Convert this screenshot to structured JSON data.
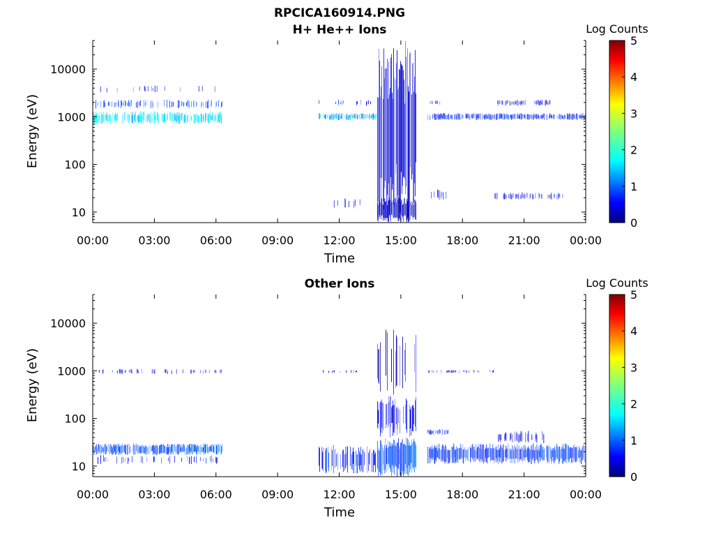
{
  "figure": {
    "title": "RPCICA160914.PNG"
  },
  "colors": {
    "low": "#00007f",
    "mid_low": "#0000ff",
    "mid": "#00ffff",
    "mid_high": "#ffff00",
    "high": "#ff0000",
    "max": "#7f0000"
  },
  "chart_data": [
    {
      "type": "heatmap",
      "title": "H+ He++ Ions",
      "xlabel": "Time",
      "ylabel": "Energy (eV)",
      "xticks": [
        "00:00",
        "03:00",
        "06:00",
        "09:00",
        "12:00",
        "15:00",
        "18:00",
        "21:00",
        "00:00"
      ],
      "xlim_hours": [
        0,
        24
      ],
      "yscale": "log",
      "ylim": [
        6,
        40000
      ],
      "yticks": [
        10,
        100,
        1000,
        10000
      ],
      "ytick_labels": [
        "10",
        "100",
        "1000",
        "10000"
      ],
      "colorbar": {
        "label": "Log Counts",
        "min": 0,
        "max": 5,
        "ticks": [
          "0",
          "1",
          "2",
          "3",
          "4",
          "5"
        ]
      },
      "bands": [
        {
          "t0": 0.0,
          "t1": 6.3,
          "e0": 700,
          "e1": 1300,
          "level": 1.6,
          "density": 0.75
        },
        {
          "t0": 0.0,
          "t1": 6.3,
          "e0": 1500,
          "e1": 2300,
          "level": 0.9,
          "density": 0.35
        },
        {
          "t0": 0.3,
          "t1": 6.3,
          "e0": 3200,
          "e1": 4500,
          "level": 0.5,
          "density": 0.08
        },
        {
          "t0": 11.0,
          "t1": 13.8,
          "e0": 850,
          "e1": 1200,
          "level": 1.3,
          "density": 0.7
        },
        {
          "t0": 11.0,
          "t1": 13.8,
          "e0": 1700,
          "e1": 2300,
          "level": 0.6,
          "density": 0.2
        },
        {
          "t0": 13.85,
          "t1": 15.75,
          "e0": 6,
          "e1": 40000,
          "level": 0.4,
          "density": 0.9
        },
        {
          "t0": 13.85,
          "t1": 15.75,
          "e0": 6,
          "e1": 20,
          "level": 0.25,
          "density": 1.0
        },
        {
          "t0": 16.3,
          "t1": 24.0,
          "e0": 850,
          "e1": 1200,
          "level": 0.7,
          "density": 0.8
        },
        {
          "t0": 16.3,
          "t1": 17.0,
          "e0": 1700,
          "e1": 2300,
          "level": 0.5,
          "density": 0.3
        },
        {
          "t0": 19.7,
          "t1": 22.3,
          "e0": 1700,
          "e1": 2300,
          "level": 0.4,
          "density": 0.6
        },
        {
          "t0": 16.3,
          "t1": 17.2,
          "e0": 18,
          "e1": 30,
          "level": 0.6,
          "density": 0.5
        },
        {
          "t0": 19.5,
          "t1": 23.0,
          "e0": 18,
          "e1": 26,
          "level": 0.5,
          "density": 0.35
        },
        {
          "t0": 11.5,
          "t1": 13.0,
          "e0": 12,
          "e1": 20,
          "level": 0.5,
          "density": 0.15
        }
      ]
    },
    {
      "type": "heatmap",
      "title": "Other Ions",
      "xlabel": "Time",
      "ylabel": "Energy (eV)",
      "xticks": [
        "00:00",
        "03:00",
        "06:00",
        "09:00",
        "12:00",
        "15:00",
        "18:00",
        "21:00",
        "00:00"
      ],
      "xlim_hours": [
        0,
        24
      ],
      "yscale": "log",
      "ylim": [
        6,
        40000
      ],
      "yticks": [
        10,
        100,
        1000,
        10000
      ],
      "ytick_labels": [
        "10",
        "100",
        "1000",
        "10000"
      ],
      "colorbar": {
        "label": "Log Counts",
        "min": 0,
        "max": 5,
        "ticks": [
          "0",
          "1",
          "2",
          "3",
          "4",
          "5"
        ]
      },
      "bands": [
        {
          "t0": 0.0,
          "t1": 6.3,
          "e0": 17,
          "e1": 30,
          "level": 0.9,
          "density": 0.85
        },
        {
          "t0": 0.0,
          "t1": 6.3,
          "e0": 11,
          "e1": 17,
          "level": 0.6,
          "density": 0.25
        },
        {
          "t0": 0.3,
          "t1": 6.3,
          "e0": 850,
          "e1": 1100,
          "level": 0.5,
          "density": 0.25
        },
        {
          "t0": 11.0,
          "t1": 13.8,
          "e0": 7,
          "e1": 28,
          "level": 0.7,
          "density": 0.5
        },
        {
          "t0": 11.0,
          "t1": 13.8,
          "e0": 900,
          "e1": 1050,
          "level": 0.4,
          "density": 0.15
        },
        {
          "t0": 13.85,
          "t1": 15.75,
          "e0": 6,
          "e1": 40,
          "level": 0.9,
          "density": 1.0
        },
        {
          "t0": 13.85,
          "t1": 15.75,
          "e0": 40,
          "e1": 300,
          "level": 0.5,
          "density": 0.7
        },
        {
          "t0": 13.85,
          "t1": 15.75,
          "e0": 300,
          "e1": 8000,
          "level": 0.3,
          "density": 0.35
        },
        {
          "t0": 16.3,
          "t1": 24.0,
          "e0": 11,
          "e1": 30,
          "level": 0.8,
          "density": 0.9
        },
        {
          "t0": 16.3,
          "t1": 17.3,
          "e0": 45,
          "e1": 60,
          "level": 0.6,
          "density": 0.7
        },
        {
          "t0": 16.3,
          "t1": 19.6,
          "e0": 900,
          "e1": 1050,
          "level": 0.5,
          "density": 0.35
        },
        {
          "t0": 19.7,
          "t1": 22.2,
          "e0": 30,
          "e1": 55,
          "level": 0.5,
          "density": 0.3
        }
      ]
    }
  ]
}
